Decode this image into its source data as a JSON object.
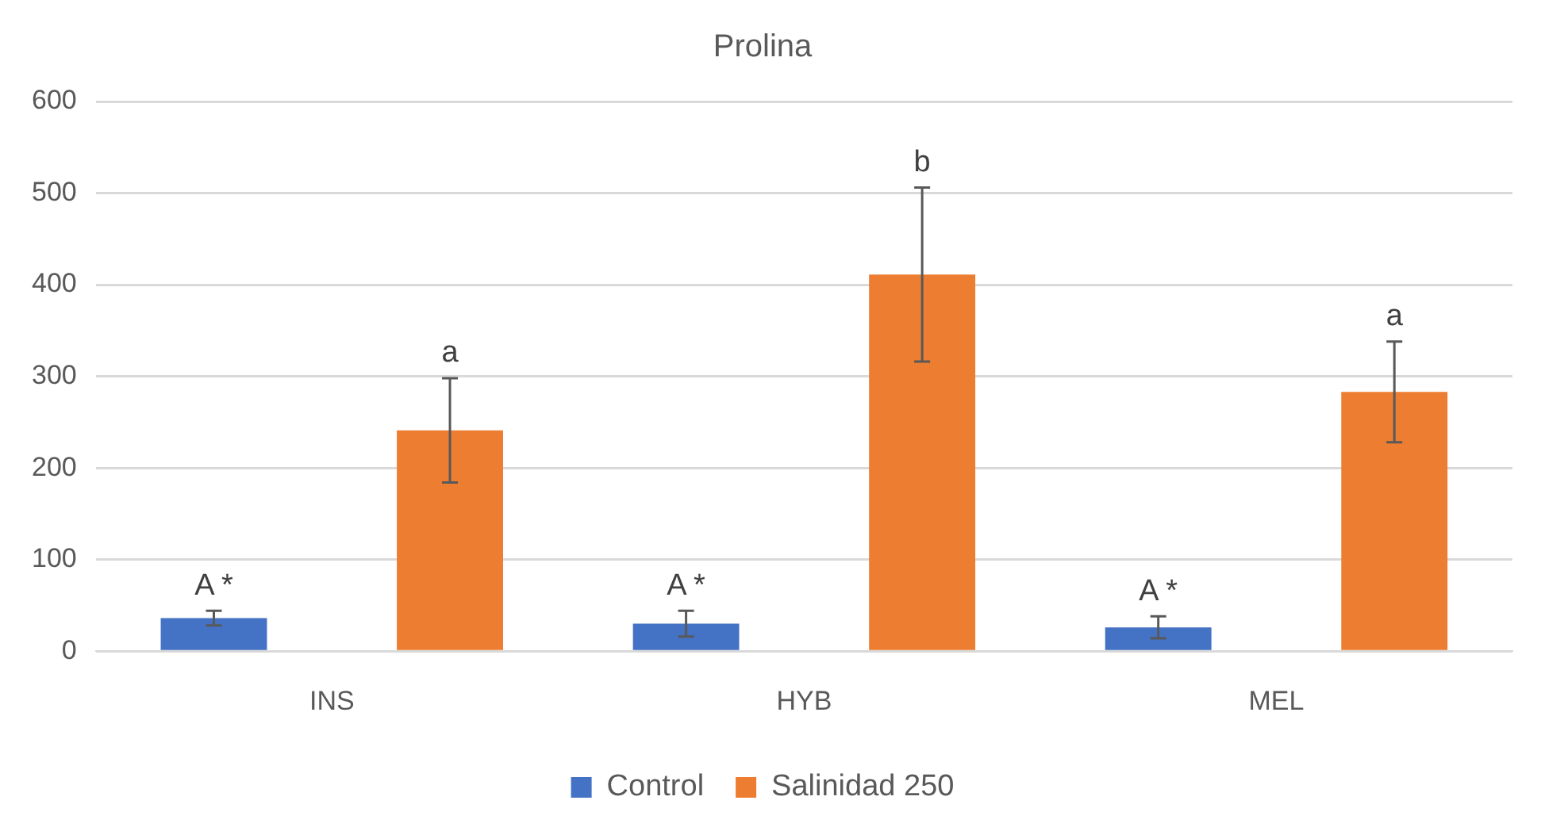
{
  "chart_data": {
    "type": "bar",
    "title": "Prolina",
    "categories": [
      "INS",
      "HYB",
      "MEL"
    ],
    "series": [
      {
        "name": "Control",
        "color": "#4472c4",
        "values": [
          36,
          30,
          26
        ],
        "errors": [
          8,
          14,
          12
        ]
      },
      {
        "name": "Salinidad 250",
        "color": "#ed7d31",
        "values": [
          241,
          411,
          283
        ],
        "errors": [
          57,
          95,
          55
        ]
      }
    ],
    "ylim": [
      0,
      600
    ],
    "yticks": [
      0,
      100,
      200,
      300,
      400,
      500,
      600
    ],
    "grid": "y",
    "legend": "bottom",
    "annotations": [
      "A *",
      "a",
      "A *",
      "b",
      "A *",
      "a"
    ]
  }
}
